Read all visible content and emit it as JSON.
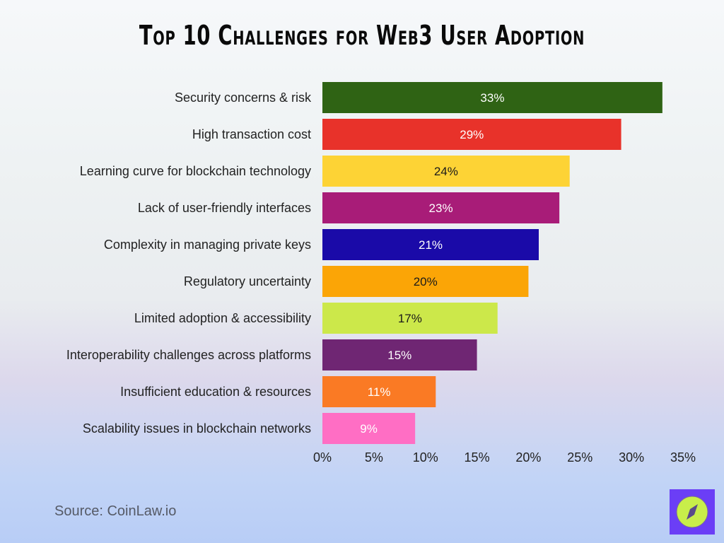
{
  "chart_data": {
    "type": "bar",
    "orientation": "horizontal",
    "title": "Top 10 Challenges for Web3 User Adoption",
    "categories": [
      "Security concerns & risk",
      "High transaction cost",
      "Learning curve for blockchain technology",
      "Lack of user-friendly interfaces",
      "Complexity in managing private keys",
      "Regulatory uncertainty",
      "Limited adoption & accessibility",
      "Interoperability challenges across platforms",
      "Insufficient education & resources",
      "Scalability issues in blockchain networks"
    ],
    "values": [
      33,
      29,
      24,
      23,
      21,
      20,
      17,
      15,
      11,
      9
    ],
    "data_labels": [
      "33%",
      "29%",
      "24%",
      "23%",
      "21%",
      "20%",
      "17%",
      "15%",
      "11%",
      "9%"
    ],
    "colors": [
      "#2f6314",
      "#e8322a",
      "#fdd335",
      "#a81c78",
      "#1a0aa8",
      "#fba506",
      "#cce84a",
      "#6f2673",
      "#fa7a24",
      "#ff6ec4"
    ],
    "label_colors": [
      "#ffffff",
      "#ffffff",
      "#1a1a1a",
      "#ffffff",
      "#ffffff",
      "#1a1a1a",
      "#1a1a1a",
      "#ffffff",
      "#ffffff",
      "#ffffff"
    ],
    "xlim": [
      0,
      35
    ],
    "xticks": [
      "0%",
      "5%",
      "10%",
      "15%",
      "20%",
      "25%",
      "30%",
      "35%"
    ],
    "xlabel": "",
    "ylabel": "",
    "grid": false
  },
  "source": "Source: CoinLaw.io",
  "logo": {
    "icon": "compass-icon",
    "background": "#6b3ef6",
    "circle": "#c8ee4a"
  }
}
